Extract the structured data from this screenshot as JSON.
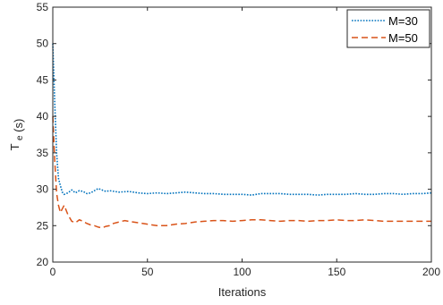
{
  "chart_data": {
    "type": "line",
    "title": "",
    "xlabel": "Iterations",
    "ylabel_main": "T",
    "ylabel_sub": "e",
    "ylabel_unit": "(s)",
    "xlim": [
      0,
      200
    ],
    "ylim": [
      20,
      55
    ],
    "xticks": [
      0,
      50,
      100,
      150,
      200
    ],
    "yticks": [
      20,
      25,
      30,
      35,
      40,
      45,
      50,
      55
    ],
    "grid": false,
    "legend_position": "top-right",
    "series": [
      {
        "name": "M=30",
        "color": "#0072BD",
        "style": "dotted",
        "points": [
          [
            0,
            50
          ],
          [
            1,
            42
          ],
          [
            2,
            35
          ],
          [
            3,
            31.5
          ],
          [
            4,
            30.5
          ],
          [
            5,
            29.6
          ],
          [
            6,
            29.3
          ],
          [
            8,
            29.5
          ],
          [
            10,
            29.9
          ],
          [
            12,
            29.5
          ],
          [
            14,
            29.8
          ],
          [
            16,
            29.7
          ],
          [
            18,
            29.4
          ],
          [
            20,
            29.5
          ],
          [
            22,
            29.8
          ],
          [
            24,
            30.1
          ],
          [
            26,
            29.9
          ],
          [
            28,
            29.7
          ],
          [
            30,
            29.8
          ],
          [
            35,
            29.6
          ],
          [
            40,
            29.7
          ],
          [
            45,
            29.5
          ],
          [
            50,
            29.4
          ],
          [
            55,
            29.5
          ],
          [
            60,
            29.4
          ],
          [
            65,
            29.5
          ],
          [
            70,
            29.6
          ],
          [
            75,
            29.5
          ],
          [
            80,
            29.4
          ],
          [
            85,
            29.4
          ],
          [
            90,
            29.3
          ],
          [
            95,
            29.3
          ],
          [
            100,
            29.3
          ],
          [
            105,
            29.2
          ],
          [
            110,
            29.4
          ],
          [
            115,
            29.4
          ],
          [
            120,
            29.4
          ],
          [
            125,
            29.3
          ],
          [
            130,
            29.3
          ],
          [
            135,
            29.3
          ],
          [
            140,
            29.2
          ],
          [
            145,
            29.3
          ],
          [
            150,
            29.3
          ],
          [
            155,
            29.3
          ],
          [
            160,
            29.4
          ],
          [
            165,
            29.3
          ],
          [
            170,
            29.3
          ],
          [
            175,
            29.4
          ],
          [
            180,
            29.4
          ],
          [
            185,
            29.3
          ],
          [
            190,
            29.4
          ],
          [
            195,
            29.4
          ],
          [
            200,
            29.5
          ]
        ]
      },
      {
        "name": "M=50",
        "color": "#D95319",
        "style": "dashed",
        "points": [
          [
            0,
            40
          ],
          [
            1,
            34
          ],
          [
            2,
            29.5
          ],
          [
            3,
            27.8
          ],
          [
            4,
            26.8
          ],
          [
            5,
            27.3
          ],
          [
            6,
            27.8
          ],
          [
            8,
            26.5
          ],
          [
            10,
            25.6
          ],
          [
            12,
            25.4
          ],
          [
            14,
            25.8
          ],
          [
            16,
            25.6
          ],
          [
            18,
            25.3
          ],
          [
            20,
            25.1
          ],
          [
            22,
            25.0
          ],
          [
            24,
            24.8
          ],
          [
            26,
            24.7
          ],
          [
            28,
            24.9
          ],
          [
            30,
            25.0
          ],
          [
            32,
            25.3
          ],
          [
            35,
            25.5
          ],
          [
            38,
            25.7
          ],
          [
            40,
            25.6
          ],
          [
            45,
            25.4
          ],
          [
            50,
            25.2
          ],
          [
            55,
            25.0
          ],
          [
            60,
            25.0
          ],
          [
            65,
            25.2
          ],
          [
            70,
            25.3
          ],
          [
            75,
            25.5
          ],
          [
            80,
            25.6
          ],
          [
            85,
            25.7
          ],
          [
            90,
            25.7
          ],
          [
            95,
            25.6
          ],
          [
            100,
            25.7
          ],
          [
            105,
            25.8
          ],
          [
            110,
            25.8
          ],
          [
            115,
            25.7
          ],
          [
            120,
            25.6
          ],
          [
            125,
            25.7
          ],
          [
            130,
            25.7
          ],
          [
            135,
            25.6
          ],
          [
            140,
            25.7
          ],
          [
            145,
            25.7
          ],
          [
            150,
            25.8
          ],
          [
            155,
            25.7
          ],
          [
            160,
            25.7
          ],
          [
            165,
            25.8
          ],
          [
            170,
            25.7
          ],
          [
            175,
            25.6
          ],
          [
            180,
            25.6
          ],
          [
            185,
            25.6
          ],
          [
            190,
            25.6
          ],
          [
            195,
            25.6
          ],
          [
            200,
            25.6
          ]
        ]
      }
    ]
  }
}
